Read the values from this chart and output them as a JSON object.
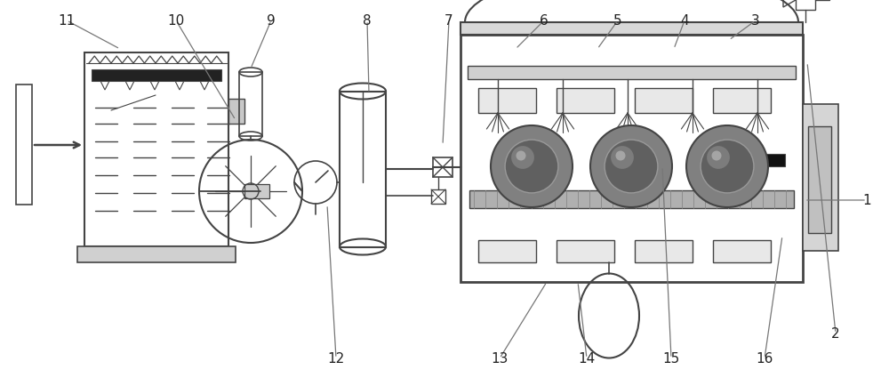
{
  "bg_color": "#ffffff",
  "lc": "#555555",
  "dc": "#444444",
  "figsize": [
    10.0,
    4.25
  ],
  "dpi": 100,
  "xlim": [
    0,
    1000
  ],
  "ylim": [
    0,
    425
  ]
}
